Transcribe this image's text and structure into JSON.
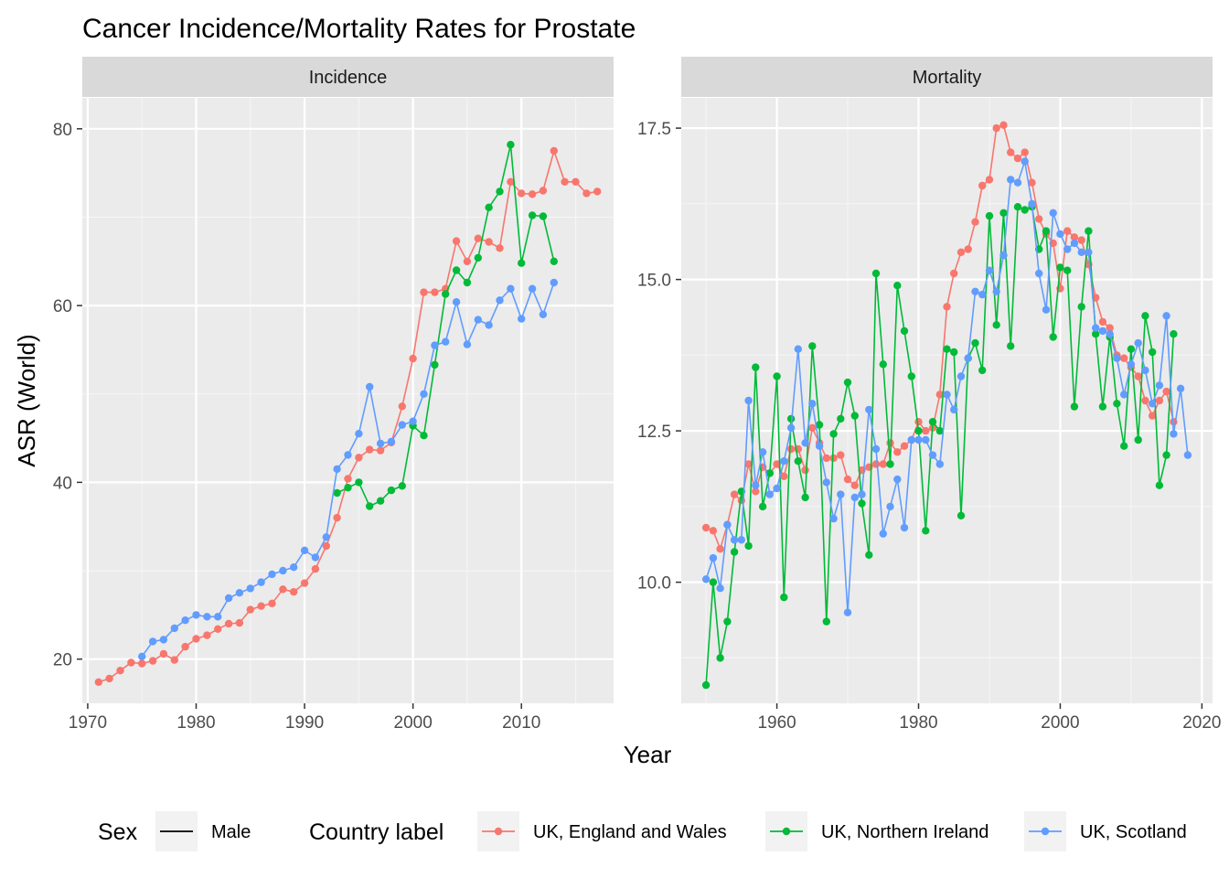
{
  "chart_data": {
    "type": "line",
    "title": "Cancer Incidence/Mortality Rates for Prostate",
    "xlabel": "Year",
    "ylabel": "ASR (World)",
    "grid": true,
    "legend_placement": "bottom",
    "colors": {
      "UK, England and Wales": "#F8766D",
      "UK, Northern Ireland": "#00BA38",
      "UK, Scotland": "#619CFF"
    },
    "legend": {
      "sex_title": "Sex",
      "sex_value": "Male",
      "country_title": "Country label",
      "countries": [
        "UK, England and Wales",
        "UK, Northern Ireland",
        "UK, Scotland"
      ]
    },
    "panels": [
      {
        "name": "Incidence",
        "xlim": [
          1969.5,
          2018.5
        ],
        "ylim": [
          15,
          83.5
        ],
        "xticks": [
          1970,
          1980,
          1990,
          2000,
          2010
        ],
        "yticks": [
          20,
          40,
          60,
          80
        ],
        "ytick_labels": [
          "20",
          "40",
          "60",
          "80"
        ],
        "series": [
          {
            "name": "UK, England and Wales",
            "x": [
              1971,
              1972,
              1973,
              1974,
              1975,
              1976,
              1977,
              1978,
              1979,
              1980,
              1981,
              1982,
              1983,
              1984,
              1985,
              1986,
              1987,
              1988,
              1989,
              1990,
              1991,
              1992,
              1993,
              1994,
              1995,
              1996,
              1997,
              1998,
              1999,
              2000,
              2001,
              2002,
              2003,
              2004,
              2005,
              2006,
              2007,
              2008,
              2009,
              2010,
              2011,
              2012,
              2013,
              2014,
              2015,
              2016,
              2017
            ],
            "y": [
              17.4,
              17.8,
              18.7,
              19.6,
              19.5,
              19.8,
              20.6,
              19.9,
              21.4,
              22.3,
              22.7,
              23.4,
              24.0,
              24.1,
              25.6,
              26.0,
              26.3,
              27.9,
              27.6,
              28.6,
              30.2,
              32.8,
              36.0,
              40.4,
              42.8,
              43.7,
              43.6,
              44.5,
              48.6,
              54.0,
              61.5,
              61.5,
              61.9,
              67.3,
              65.0,
              67.6,
              67.2,
              66.5,
              74.0,
              72.7,
              72.6,
              73.0,
              77.5,
              74.0,
              74.0,
              72.7,
              72.9
            ]
          },
          {
            "name": "UK, Northern Ireland",
            "x": [
              1993,
              1994,
              1995,
              1996,
              1997,
              1998,
              1999,
              2000,
              2001,
              2002,
              2003,
              2004,
              2005,
              2006,
              2007,
              2008,
              2009,
              2010,
              2011,
              2012,
              2013
            ],
            "y": [
              38.8,
              39.4,
              40.0,
              37.3,
              37.9,
              39.1,
              39.6,
              46.4,
              45.3,
              53.3,
              61.3,
              64.0,
              62.6,
              65.4,
              71.1,
              72.9,
              78.2,
              64.8,
              70.2,
              70.1,
              65.0
            ]
          },
          {
            "name": "UK, Scotland",
            "x": [
              1975,
              1976,
              1977,
              1978,
              1979,
              1980,
              1981,
              1982,
              1983,
              1984,
              1985,
              1986,
              1987,
              1988,
              1989,
              1990,
              1991,
              1992,
              1993,
              1994,
              1995,
              1996,
              1997,
              1998,
              1999,
              2000,
              2001,
              2002,
              2003,
              2004,
              2005,
              2006,
              2007,
              2008,
              2009,
              2010,
              2011,
              2012,
              2013
            ],
            "y": [
              20.3,
              22.0,
              22.2,
              23.5,
              24.4,
              25.0,
              24.8,
              24.8,
              26.9,
              27.5,
              28.0,
              28.7,
              29.6,
              30.0,
              30.4,
              32.3,
              31.5,
              33.8,
              41.5,
              43.1,
              45.5,
              50.8,
              44.4,
              44.6,
              46.5,
              46.9,
              50.0,
              55.5,
              55.9,
              60.4,
              55.6,
              58.4,
              57.8,
              60.6,
              61.9,
              58.5,
              61.9,
              59.0,
              62.6
            ]
          }
        ]
      },
      {
        "name": "Mortality",
        "xlim": [
          1946.5,
          2021.5
        ],
        "ylim": [
          8.0,
          18.0
        ],
        "xticks": [
          1960,
          1980,
          2000,
          2020
        ],
        "yticks": [
          10.0,
          12.5,
          15.0,
          17.5
        ],
        "ytick_labels": [
          "10.0",
          "12.5",
          "15.0",
          "17.5"
        ],
        "series": [
          {
            "name": "UK, England and Wales",
            "x": [
              1950,
              1951,
              1952,
              1953,
              1954,
              1955,
              1956,
              1957,
              1958,
              1959,
              1960,
              1961,
              1962,
              1963,
              1964,
              1965,
              1966,
              1967,
              1968,
              1969,
              1970,
              1971,
              1972,
              1973,
              1974,
              1975,
              1976,
              1977,
              1978,
              1979,
              1980,
              1981,
              1982,
              1983,
              1984,
              1985,
              1986,
              1987,
              1988,
              1989,
              1990,
              1991,
              1992,
              1993,
              1994,
              1995,
              1996,
              1997,
              1998,
              1999,
              2000,
              2001,
              2002,
              2003,
              2004,
              2005,
              2006,
              2007,
              2008,
              2009,
              2010,
              2011,
              2012,
              2013,
              2014,
              2015,
              2016
            ],
            "y": [
              10.9,
              10.85,
              10.55,
              10.95,
              11.45,
              11.35,
              11.95,
              11.5,
              11.9,
              11.8,
              11.95,
              11.75,
              12.2,
              12.2,
              11.85,
              12.55,
              12.3,
              12.05,
              12.05,
              12.1,
              11.7,
              11.6,
              11.85,
              11.9,
              11.95,
              11.95,
              12.3,
              12.15,
              12.25,
              12.35,
              12.65,
              12.5,
              12.55,
              13.1,
              14.55,
              15.1,
              15.45,
              15.5,
              15.95,
              16.55,
              16.65,
              17.5,
              17.55,
              17.1,
              17.0,
              17.1,
              16.6,
              16.0,
              15.75,
              15.6,
              14.85,
              15.8,
              15.7,
              15.65,
              15.25,
              14.7,
              14.3,
              14.2,
              13.75,
              13.7,
              13.55,
              13.4,
              13.0,
              12.75,
              13.0,
              13.15,
              12.65
            ]
          },
          {
            "name": "UK, Northern Ireland",
            "x": [
              1950,
              1951,
              1952,
              1953,
              1954,
              1955,
              1956,
              1957,
              1958,
              1959,
              1960,
              1961,
              1962,
              1963,
              1964,
              1965,
              1966,
              1967,
              1968,
              1969,
              1970,
              1971,
              1972,
              1973,
              1974,
              1975,
              1976,
              1977,
              1978,
              1979,
              1980,
              1981,
              1982,
              1983,
              1984,
              1985,
              1986,
              1987,
              1988,
              1989,
              1990,
              1991,
              1992,
              1993,
              1994,
              1995,
              1996,
              1997,
              1998,
              1999,
              2000,
              2001,
              2002,
              2003,
              2004,
              2005,
              2006,
              2007,
              2008,
              2009,
              2010,
              2011,
              2012,
              2013,
              2014,
              2015,
              2016
            ],
            "y": [
              8.3,
              10.0,
              8.75,
              9.35,
              10.5,
              11.5,
              10.6,
              13.55,
              11.25,
              11.8,
              13.4,
              9.75,
              12.7,
              12.0,
              11.4,
              13.9,
              12.6,
              9.35,
              12.45,
              12.7,
              13.3,
              12.75,
              11.3,
              10.45,
              15.1,
              13.6,
              11.95,
              14.9,
              14.15,
              13.4,
              12.5,
              10.85,
              12.65,
              12.5,
              13.85,
              13.8,
              11.1,
              13.7,
              13.95,
              13.5,
              16.05,
              14.25,
              16.1,
              13.9,
              16.2,
              16.15,
              16.2,
              15.5,
              15.8,
              14.05,
              15.2,
              15.15,
              12.9,
              14.55,
              15.8,
              14.1,
              12.9,
              14.05,
              12.95,
              12.25,
              13.85,
              12.35,
              14.4,
              13.8,
              11.6,
              12.1,
              14.1
            ]
          },
          {
            "name": "UK, Scotland",
            "x": [
              1950,
              1951,
              1952,
              1953,
              1954,
              1955,
              1956,
              1957,
              1958,
              1959,
              1960,
              1961,
              1962,
              1963,
              1964,
              1965,
              1966,
              1967,
              1968,
              1969,
              1970,
              1971,
              1972,
              1973,
              1974,
              1975,
              1976,
              1977,
              1978,
              1979,
              1980,
              1981,
              1982,
              1983,
              1984,
              1985,
              1986,
              1987,
              1988,
              1989,
              1990,
              1991,
              1992,
              1993,
              1994,
              1995,
              1996,
              1997,
              1998,
              1999,
              2000,
              2001,
              2002,
              2003,
              2004,
              2005,
              2006,
              2007,
              2008,
              2009,
              2010,
              2011,
              2012,
              2013,
              2014,
              2015,
              2016,
              2017,
              2018
            ],
            "y": [
              10.05,
              10.4,
              9.9,
              10.95,
              10.7,
              10.7,
              13.0,
              11.6,
              12.15,
              11.45,
              11.55,
              12.0,
              12.55,
              13.85,
              12.3,
              12.95,
              12.25,
              11.65,
              11.05,
              11.45,
              9.5,
              11.4,
              11.45,
              12.85,
              12.2,
              10.8,
              11.25,
              11.7,
              10.9,
              12.35,
              12.35,
              12.35,
              12.1,
              11.95,
              13.1,
              12.85,
              13.4,
              13.7,
              14.8,
              14.75,
              15.15,
              14.8,
              15.4,
              16.65,
              16.6,
              16.95,
              16.25,
              15.1,
              14.5,
              16.1,
              15.75,
              15.5,
              15.6,
              15.45,
              15.45,
              14.2,
              14.15,
              14.1,
              13.7,
              13.1,
              13.6,
              13.95,
              13.5,
              12.95,
              13.25,
              14.4,
              12.45,
              13.2,
              12.1
            ]
          }
        ]
      }
    ]
  }
}
